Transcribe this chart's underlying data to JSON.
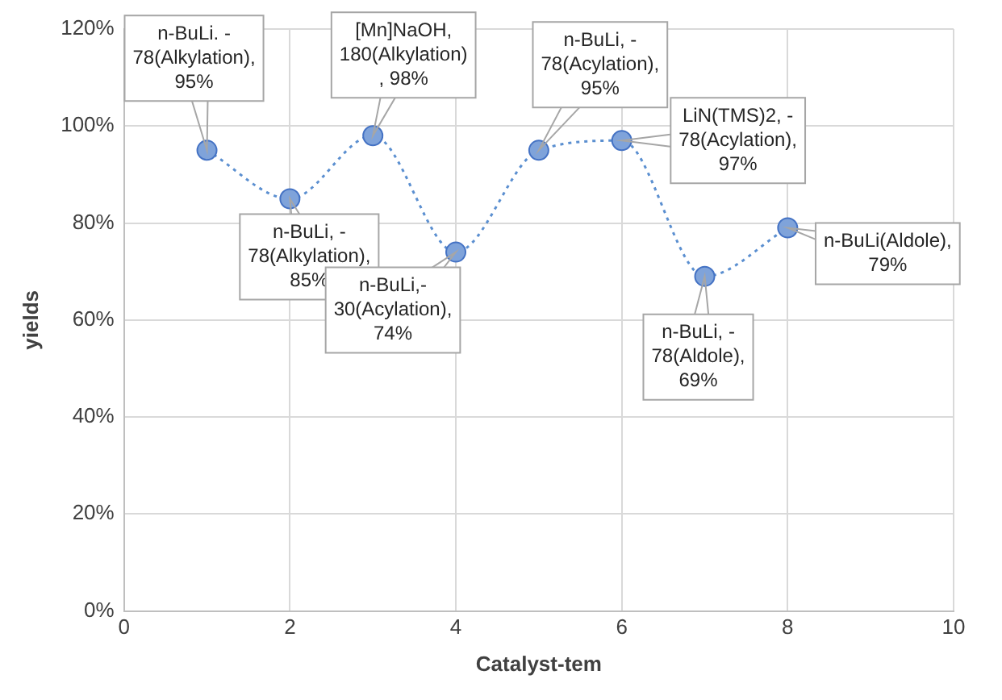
{
  "chart_data": {
    "type": "line",
    "xlabel": "Catalyst-tem",
    "ylabel": "yields",
    "x": [
      1,
      2,
      3,
      4,
      5,
      6,
      7,
      8
    ],
    "series": [
      {
        "color": "#4472c4",
        "values": [
          95,
          85,
          98,
          74,
          95,
          97,
          69,
          79
        ]
      }
    ],
    "xlim": [
      0,
      10
    ],
    "xticks": [
      0,
      2,
      4,
      6,
      8,
      10
    ],
    "ylim": [
      0,
      120
    ],
    "yticks": [
      {
        "value": 0,
        "label": "0%"
      },
      {
        "value": 20,
        "label": "20%"
      },
      {
        "value": 40,
        "label": "40%"
      },
      {
        "value": 60,
        "label": "60%"
      },
      {
        "value": 80,
        "label": "80%"
      },
      {
        "value": 100,
        "label": "100%"
      },
      {
        "value": 120,
        "label": "120%"
      }
    ],
    "grid": true,
    "legend": false,
    "marker": "circle",
    "line_style": "dotted",
    "annotations": [
      {
        "text": "n-BuLi. -\n78(Alkylation),\n95%",
        "x": 1,
        "y": 95
      },
      {
        "text": "n-BuLi, -\n78(Alkylation),\n85%",
        "x": 2,
        "y": 85
      },
      {
        "text": "[Mn]NaOH,\n180(Alkylation)\n, 98%",
        "x": 3,
        "y": 98
      },
      {
        "text": "n-BuLi,-\n30(Acylation),\n74%",
        "x": 4,
        "y": 74
      },
      {
        "text": "n-BuLi, -\n78(Acylation),\n95%",
        "x": 5,
        "y": 95
      },
      {
        "text": "LiN(TMS)2, -\n78(Acylation),\n97%",
        "x": 6,
        "y": 97
      },
      {
        "text": "n-BuLi, -\n78(Aldole),\n69%",
        "x": 7,
        "y": 69
      },
      {
        "text": "n-BuLi(Aldole),\n79%",
        "x": 8,
        "y": 79
      }
    ]
  }
}
